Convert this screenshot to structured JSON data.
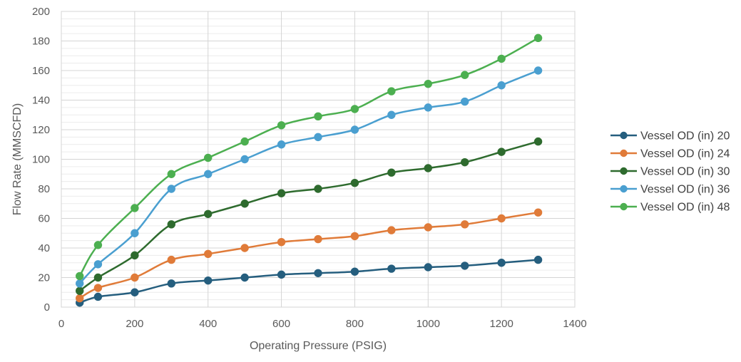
{
  "chart_data": {
    "type": "line",
    "title": "",
    "xlabel": "Operating Pressure (PSIG)",
    "ylabel": "Flow Rate (MMSCFD)",
    "xlim": [
      0,
      1400
    ],
    "ylim": [
      0,
      200
    ],
    "x_ticks": [
      "0",
      "200",
      "400",
      "600",
      "800",
      "1000",
      "1200",
      "1400"
    ],
    "y_ticks": [
      "0",
      "20",
      "40",
      "60",
      "80",
      "100",
      "120",
      "140",
      "160",
      "180",
      "200"
    ],
    "grid": true,
    "legend_position": "right",
    "x": [
      50,
      100,
      200,
      300,
      400,
      500,
      600,
      700,
      800,
      900,
      1000,
      1100,
      1200,
      1300
    ],
    "series": [
      {
        "name": "Vessel OD (in) 20",
        "color": "#255E7E",
        "values": [
          3,
          7,
          10,
          16,
          18,
          20,
          22,
          23,
          24,
          26,
          27,
          28,
          30,
          32
        ]
      },
      {
        "name": "Vessel OD (in) 24",
        "color": "#E07B39",
        "values": [
          6,
          13,
          20,
          32,
          36,
          40,
          44,
          46,
          48,
          52,
          54,
          56,
          60,
          64
        ]
      },
      {
        "name": "Vessel OD (in) 30",
        "color": "#2E6B2E",
        "values": [
          11,
          20,
          35,
          56,
          63,
          70,
          77,
          80,
          84,
          91,
          94,
          98,
          105,
          112
        ]
      },
      {
        "name": "Vessel OD (in) 36",
        "color": "#4A9FD0",
        "values": [
          16,
          29,
          50,
          80,
          90,
          100,
          110,
          115,
          120,
          130,
          135,
          139,
          150,
          160
        ]
      },
      {
        "name": "Vessel OD (in) 48",
        "color": "#4CAF50",
        "values": [
          21,
          42,
          67,
          90,
          101,
          112,
          123,
          129,
          134,
          146,
          151,
          157,
          168,
          182
        ]
      }
    ]
  }
}
